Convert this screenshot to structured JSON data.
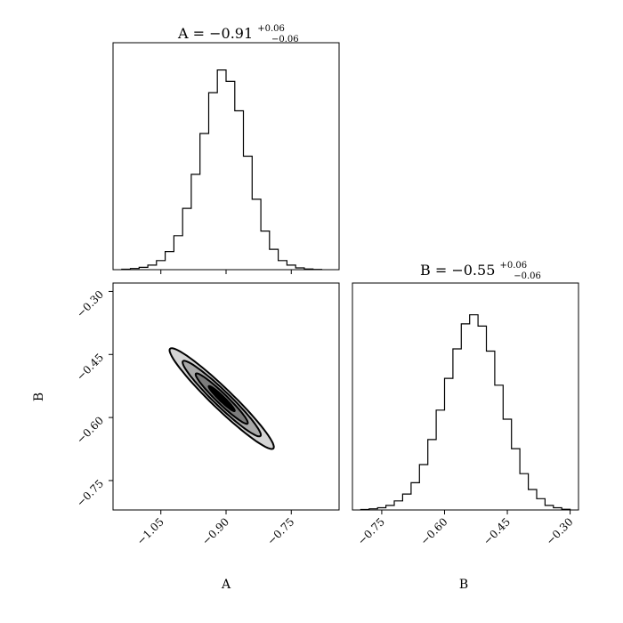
{
  "chart_data": [
    {
      "type": "histogram",
      "panel": "marginal-A",
      "title": {
        "base": "A = −0.91",
        "sup": "+0.06",
        "sub": "−0.06"
      },
      "xlim": [
        -1.16,
        -0.64
      ],
      "x": [
        -1.13,
        -1.11,
        -1.09,
        -1.07,
        -1.05,
        -1.03,
        -1.01,
        -0.99,
        -0.97,
        -0.95,
        -0.93,
        -0.91,
        -0.89,
        -0.87,
        -0.85,
        -0.83,
        -0.81,
        -0.79,
        -0.77,
        -0.75,
        -0.73,
        -0.71,
        -0.69
      ],
      "counts": [
        0.2,
        0.5,
        1,
        2,
        4,
        8,
        15,
        27,
        42,
        60,
        78,
        88,
        83,
        70,
        50,
        31,
        17,
        9,
        4,
        2,
        0.8,
        0.3,
        0.1
      ],
      "ylim": [
        0,
        100
      ]
    },
    {
      "type": "contour",
      "panel": "joint-A-B",
      "xlabel": "A",
      "ylabel": "B",
      "xlim": [
        -1.16,
        -0.64
      ],
      "ylim": [
        -0.82,
        -0.28
      ],
      "xticks": [
        "−1.05",
        "−0.90",
        "−0.75"
      ],
      "xtick_values": [
        -1.05,
        -0.9,
        -0.75
      ],
      "yticks": [
        "−0.30",
        "−0.45",
        "−0.60",
        "−0.75"
      ],
      "ytick_values": [
        -0.3,
        -0.45,
        -0.6,
        -0.75
      ],
      "center": [
        -0.91,
        -0.555
      ],
      "correlation": -0.96,
      "sigma_x": 0.06,
      "sigma_y": 0.06,
      "levels": [
        {
          "sigma": 2.0,
          "fill": "#d4d4d4"
        },
        {
          "sigma": 1.5,
          "fill": "#a9a9a9"
        },
        {
          "sigma": 1.0,
          "fill": "#7c7c7c"
        },
        {
          "sigma": 0.5,
          "fill": "#000000"
        }
      ]
    },
    {
      "type": "histogram",
      "panel": "marginal-B",
      "title": {
        "base": "B = −0.55",
        "sup": "+0.06",
        "sub": "−0.06"
      },
      "xlabel": "B",
      "xlim": [
        -0.82,
        -0.28
      ],
      "xticks": [
        "−0.75",
        "−0.60",
        "−0.45",
        "−0.30"
      ],
      "xtick_values": [
        -0.75,
        -0.6,
        -0.45,
        -0.3
      ],
      "x": [
        -0.79,
        -0.77,
        -0.75,
        -0.73,
        -0.71,
        -0.69,
        -0.67,
        -0.65,
        -0.63,
        -0.61,
        -0.59,
        -0.57,
        -0.55,
        -0.53,
        -0.51,
        -0.49,
        -0.47,
        -0.45,
        -0.43,
        -0.41,
        -0.39,
        -0.37,
        -0.35,
        -0.33,
        -0.31
      ],
      "counts": [
        0.2,
        0.5,
        1,
        2,
        4,
        7,
        12,
        20,
        31,
        44,
        58,
        71,
        82,
        86,
        81,
        70,
        55,
        40,
        27,
        16,
        9,
        5,
        2,
        1,
        0.3
      ],
      "ylim": [
        0,
        100
      ]
    }
  ]
}
